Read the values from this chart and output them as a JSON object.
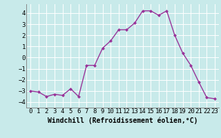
{
  "x": [
    0,
    1,
    2,
    3,
    4,
    5,
    6,
    7,
    8,
    9,
    10,
    11,
    12,
    13,
    14,
    15,
    16,
    17,
    18,
    19,
    20,
    21,
    22,
    23
  ],
  "y": [
    -3.0,
    -3.1,
    -3.5,
    -3.3,
    -3.4,
    -2.8,
    -3.5,
    -0.7,
    -0.7,
    0.85,
    1.5,
    2.5,
    2.5,
    3.1,
    4.2,
    4.2,
    3.8,
    4.2,
    2.0,
    0.4,
    -0.7,
    -2.2,
    -3.6,
    -3.7
  ],
  "line_color": "#993399",
  "marker": "D",
  "marker_size": 2.0,
  "bg_color": "#c8eaea",
  "grid_color": "#b0d8d8",
  "xlabel": "Windchill (Refroidissement éolien,°C)",
  "xlabel_fontsize": 7,
  "xlim": [
    -0.5,
    23.5
  ],
  "ylim": [
    -4.5,
    4.8
  ],
  "yticks": [
    -4,
    -3,
    -2,
    -1,
    0,
    1,
    2,
    3,
    4
  ],
  "xticks": [
    0,
    1,
    2,
    3,
    4,
    5,
    6,
    7,
    8,
    9,
    10,
    11,
    12,
    13,
    14,
    15,
    16,
    17,
    18,
    19,
    20,
    21,
    22,
    23
  ],
  "tick_fontsize": 6.5,
  "linewidth": 1.0
}
